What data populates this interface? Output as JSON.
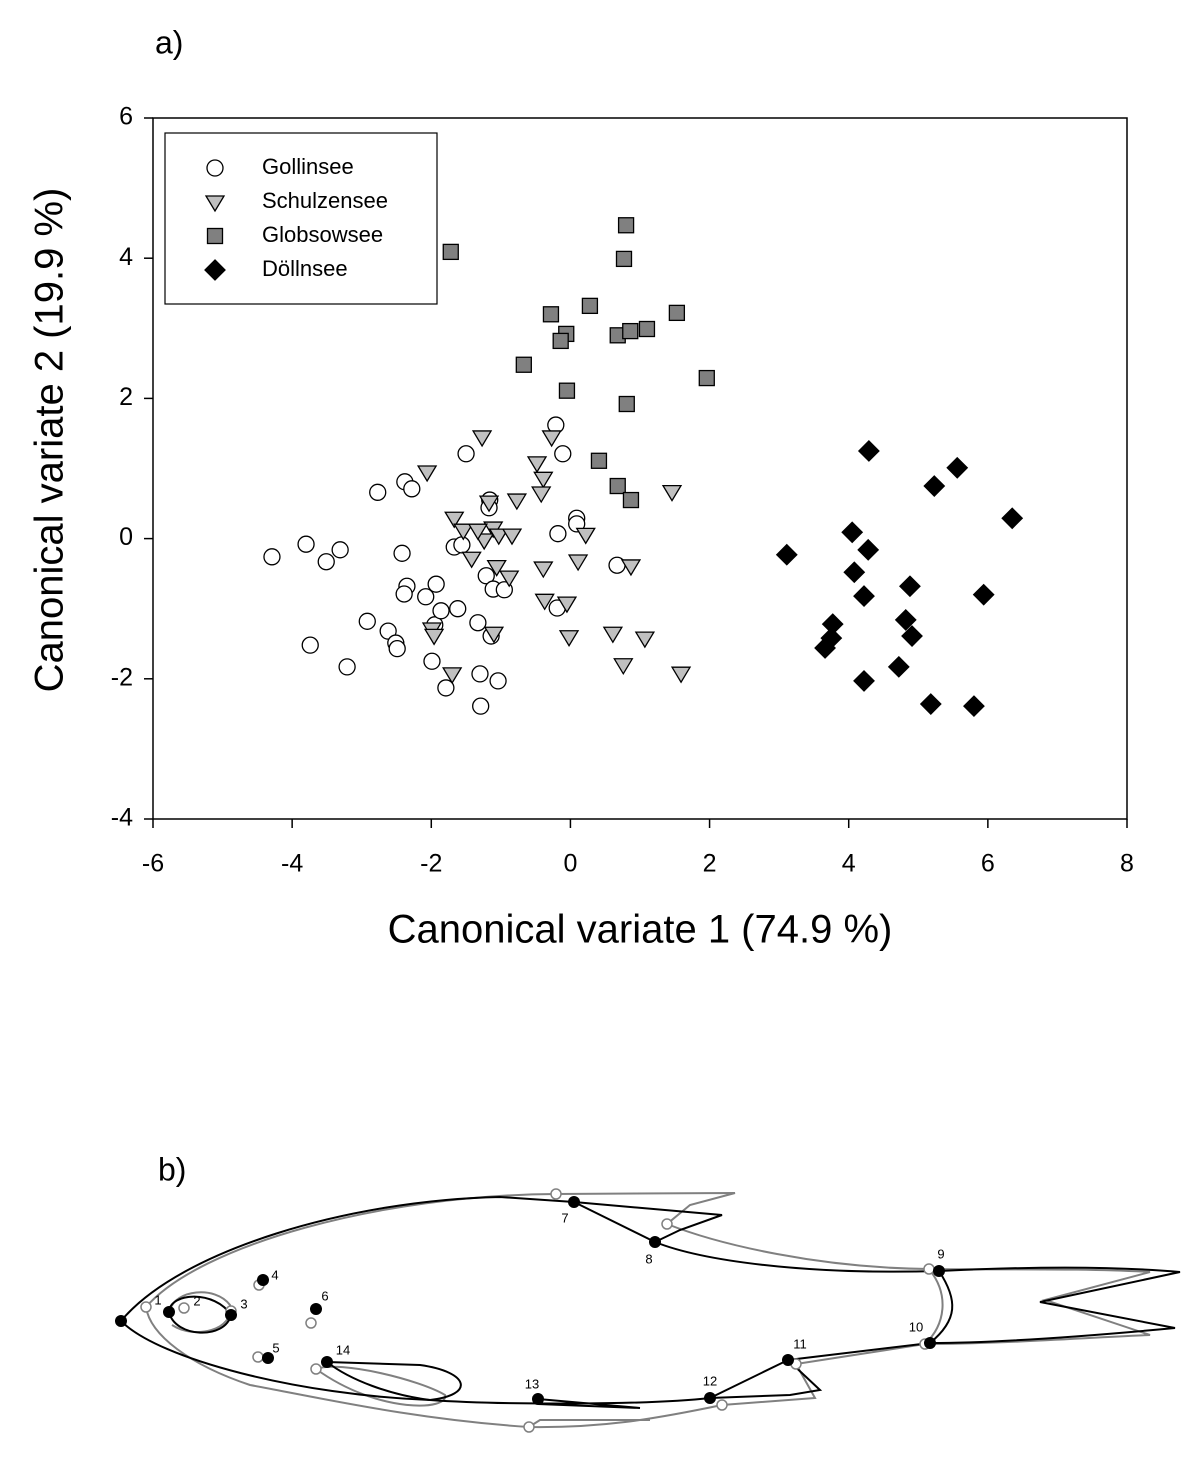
{
  "chart_data": {
    "type": "scatter",
    "panel_label": "a)",
    "x_label": "Canonical variate 1 (74.9 %)",
    "y_label": "Canonical variate 2 (19.9 %)",
    "xlim": [
      -6,
      8
    ],
    "ylim": [
      -4,
      6
    ],
    "xticks": [
      -6,
      -4,
      -2,
      0,
      2,
      4,
      6,
      8
    ],
    "yticks": [
      -4,
      -2,
      0,
      2,
      4,
      6
    ],
    "legend": "upper left",
    "series": [
      {
        "name": "Gollinsee",
        "marker": "circle",
        "color": "#ffffff",
        "x": [
          -4.29,
          -3.8,
          -3.51,
          -3.31,
          -3.74,
          -3.21,
          -2.92,
          -2.77,
          -2.62,
          -2.51,
          -2.49,
          -2.38,
          -2.28,
          -2.42,
          -2.35,
          -2.39,
          -2.08,
          -1.93,
          -1.95,
          -1.86,
          -1.99,
          -1.79,
          -1.5,
          -1.67,
          -1.56,
          -1.62,
          -1.33,
          -1.3,
          -1.29,
          -1.16,
          -1.17,
          -1.21,
          -1.11,
          -1.14,
          -1.04,
          -0.95,
          -0.21,
          -0.11,
          -0.18,
          -0.19,
          0.09,
          0.09,
          0.67
        ],
        "y": [
          -0.26,
          -0.08,
          -0.33,
          -0.16,
          -1.52,
          -1.83,
          -1.18,
          0.66,
          -1.32,
          -1.49,
          -1.57,
          0.81,
          0.71,
          -0.21,
          -0.68,
          -0.79,
          -0.83,
          -0.65,
          -1.23,
          -1.03,
          -1.75,
          -2.13,
          1.21,
          -0.12,
          -0.09,
          -1.0,
          -1.2,
          -1.93,
          -2.39,
          0.55,
          0.44,
          -0.53,
          -0.72,
          -1.39,
          -2.03,
          -0.73,
          1.62,
          1.21,
          0.07,
          -0.99,
          0.29,
          0.21,
          -0.38
        ]
      },
      {
        "name": "Schulzensee",
        "marker": "triangle-down",
        "color": "#c0c0c0",
        "x": [
          -1.27,
          -2.06,
          -1.67,
          -1.54,
          -1.42,
          -1.17,
          -1.11,
          -1.24,
          -1.03,
          -0.84,
          -1.06,
          -0.88,
          -0.77,
          -0.48,
          -0.27,
          -0.39,
          -0.42,
          -0.39,
          -0.37,
          -0.05,
          -0.02,
          0.11,
          0.22,
          0.61,
          0.76,
          0.87,
          1.07,
          1.46,
          1.59,
          -1.99,
          -1.96,
          -1.7,
          -1.1,
          -1.33
        ],
        "y": [
          1.45,
          0.95,
          0.29,
          0.12,
          -0.28,
          0.52,
          0.15,
          -0.02,
          0.05,
          0.05,
          -0.4,
          -0.55,
          0.55,
          1.08,
          1.45,
          0.86,
          0.65,
          -0.42,
          -0.88,
          -0.92,
          -1.4,
          -0.32,
          0.06,
          -1.35,
          -1.8,
          -0.39,
          -1.42,
          0.67,
          -1.92,
          -1.29,
          -1.38,
          -1.93,
          -1.35,
          0.12
        ]
      },
      {
        "name": "Globsowsee",
        "marker": "square",
        "color": "#808080",
        "x": [
          -1.72,
          0.8,
          0.77,
          -0.28,
          0.28,
          -0.06,
          -0.14,
          0.68,
          0.86,
          1.1,
          1.53,
          -0.67,
          -0.05,
          1.96,
          0.81,
          0.41,
          0.68,
          0.87
        ],
        "y": [
          4.09,
          4.47,
          3.99,
          3.2,
          3.32,
          2.92,
          2.82,
          2.9,
          2.96,
          2.99,
          3.22,
          2.48,
          2.11,
          2.29,
          1.92,
          1.11,
          0.75,
          0.55
        ]
      },
      {
        "name": "Döllnsee",
        "marker": "diamond",
        "color": "#000000",
        "x": [
          4.29,
          5.56,
          5.23,
          6.35,
          4.05,
          4.28,
          3.11,
          4.08,
          4.88,
          4.22,
          5.94,
          3.77,
          4.82,
          4.91,
          3.75,
          3.66,
          4.72,
          4.22,
          5.18,
          5.8
        ],
        "y": [
          1.25,
          1.01,
          0.75,
          0.29,
          0.09,
          -0.16,
          -0.23,
          -0.48,
          -0.68,
          -0.82,
          -0.8,
          -1.22,
          -1.16,
          -1.39,
          -1.42,
          -1.56,
          -1.83,
          -2.03,
          -2.36,
          -2.39
        ]
      }
    ]
  },
  "diagram": {
    "panel_label": "b)",
    "landmarks": [
      "1",
      "2",
      "3",
      "4",
      "5",
      "6",
      "7",
      "8",
      "9",
      "10",
      "11",
      "12",
      "13",
      "14"
    ]
  }
}
